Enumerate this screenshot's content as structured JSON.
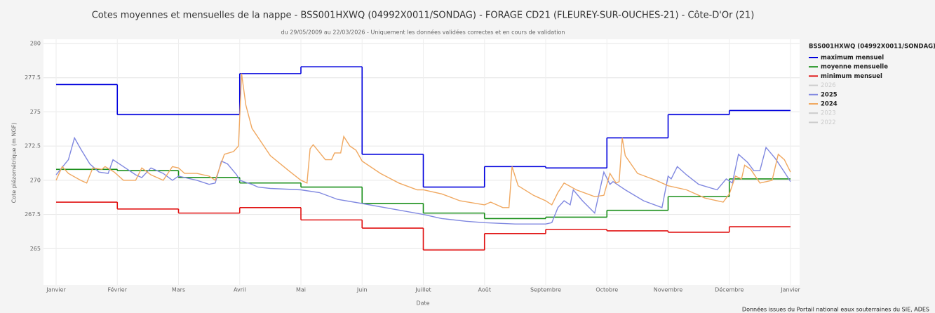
{
  "chart_data": {
    "type": "line",
    "title": "Cotes moyennes et mensuelles de la nappe - BSS001HXWQ (04992X0011/SONDAG) - FORAGE CD21 (FLEUREY-SUR-OUCHES-21) - Côte-D'Or (21)",
    "subtitle": "du 29/05/2009 au 22/03/2026 - Uniquement les données validées correctes et en cours de validation",
    "xlabel": "Date",
    "ylabel": "Cote piézométrique (m NGF)",
    "source": "Données issues du Portail national eaux souterraines du SIE, ADES",
    "legend_title": "BSS001HXWQ (04992X0011/SONDAG)",
    "legend": "right",
    "grid": true,
    "xlim": [
      0,
      12
    ],
    "xticks": [
      {
        "value": 0,
        "label": "Janvier"
      },
      {
        "value": 1,
        "label": "Février"
      },
      {
        "value": 2,
        "label": "Mars"
      },
      {
        "value": 3,
        "label": "Avril"
      },
      {
        "value": 4,
        "label": "Mai"
      },
      {
        "value": 5,
        "label": "Juin"
      },
      {
        "value": 6,
        "label": "Juillet"
      },
      {
        "value": 7,
        "label": "Août"
      },
      {
        "value": 8,
        "label": "Septembre"
      },
      {
        "value": 9,
        "label": "Octobre"
      },
      {
        "value": 10,
        "label": "Novembre"
      },
      {
        "value": 11,
        "label": "Décembre"
      },
      {
        "value": 12,
        "label": "Janvier"
      }
    ],
    "ylim": [
      262.5,
      280
    ],
    "yticks": [
      265,
      267.5,
      270,
      272.5,
      275,
      277.5,
      280
    ],
    "series": [
      {
        "name": "maximum mensuel",
        "color": "#0000dd",
        "drawstyle": "steps-post",
        "visible": true,
        "x": [
          0,
          1,
          2,
          3,
          4,
          5,
          6,
          7,
          8,
          9,
          10,
          11
        ],
        "values": [
          277.0,
          274.8,
          274.8,
          277.8,
          278.3,
          271.9,
          269.5,
          271.0,
          270.9,
          273.1,
          274.8,
          275.1
        ]
      },
      {
        "name": "moyenne mensuelle",
        "color": "#1a8f1a",
        "drawstyle": "steps-post",
        "visible": true,
        "x": [
          0,
          1,
          2,
          3,
          4,
          5,
          6,
          7,
          8,
          9,
          10,
          11
        ],
        "values": [
          270.8,
          270.7,
          270.2,
          269.8,
          269.5,
          268.3,
          267.6,
          267.2,
          267.3,
          267.8,
          268.8,
          270.1
        ]
      },
      {
        "name": "minimum mensuel",
        "color": "#e01010",
        "drawstyle": "steps-post",
        "visible": true,
        "x": [
          0,
          1,
          2,
          3,
          4,
          5,
          6,
          7,
          8,
          9,
          10,
          11
        ],
        "values": [
          268.4,
          267.9,
          267.6,
          268.0,
          267.1,
          266.5,
          264.9,
          266.1,
          266.4,
          266.3,
          266.2,
          266.6
        ]
      },
      {
        "name": "2026",
        "color": "#cccccc",
        "visible": false,
        "x": [],
        "values": []
      },
      {
        "name": "2025",
        "color": "#8088e0",
        "visible": true,
        "x": [
          0,
          0.2,
          0.3,
          0.4,
          0.55,
          0.7,
          0.85,
          0.93,
          1.1,
          1.3,
          1.4,
          1.55,
          1.75,
          1.9,
          2.0,
          2.3,
          2.5,
          2.6,
          2.7,
          2.8,
          2.95,
          3.0,
          3.2,
          3.3,
          3.5,
          4.0,
          4.3,
          4.6,
          5.0,
          5.5,
          6.0,
          6.3,
          6.7,
          7.0,
          7.5,
          8.0,
          8.1,
          8.2,
          8.3,
          8.4,
          8.45,
          8.6,
          8.8,
          8.95,
          9.05,
          9.1,
          9.3,
          9.6,
          9.9,
          10.0,
          10.05,
          10.15,
          10.3,
          10.5,
          10.8,
          10.95,
          11.05,
          11.15,
          11.3,
          11.4,
          11.5,
          11.6,
          11.75,
          11.9,
          12.0
        ],
        "values": [
          270.4,
          271.5,
          273.1,
          272.3,
          271.2,
          270.6,
          270.5,
          271.5,
          271.0,
          270.4,
          270.2,
          270.9,
          270.5,
          270.0,
          270.3,
          270.0,
          269.7,
          269.8,
          271.4,
          271.2,
          270.4,
          270.0,
          269.7,
          269.5,
          269.4,
          269.3,
          269.1,
          268.6,
          268.3,
          267.9,
          267.5,
          267.2,
          267.0,
          266.9,
          266.8,
          266.8,
          266.9,
          268.0,
          268.5,
          268.2,
          269.3,
          268.5,
          267.6,
          270.6,
          269.7,
          269.9,
          269.3,
          268.5,
          268.0,
          270.3,
          270.1,
          271.0,
          270.4,
          269.7,
          269.3,
          270.1,
          269.8,
          271.9,
          271.3,
          270.7,
          270.7,
          272.4,
          271.6,
          270.6,
          269.9
        ]
      },
      {
        "name": "2024",
        "color": "#f0a860",
        "visible": true,
        "x": [
          0,
          0.1,
          0.2,
          0.4,
          0.5,
          0.6,
          0.75,
          0.8,
          0.95,
          1.1,
          1.3,
          1.4,
          1.55,
          1.75,
          1.9,
          2.0,
          2.1,
          2.3,
          2.5,
          2.6,
          2.75,
          2.9,
          2.98,
          3.03,
          3.1,
          3.2,
          3.5,
          3.8,
          4.0,
          4.1,
          4.15,
          4.2,
          4.4,
          4.5,
          4.55,
          4.65,
          4.7,
          4.8,
          4.9,
          5.0,
          5.3,
          5.6,
          5.9,
          6.0,
          6.3,
          6.6,
          7.0,
          7.1,
          7.3,
          7.4,
          7.45,
          7.55,
          7.8,
          8.0,
          8.1,
          8.2,
          8.3,
          8.5,
          8.8,
          8.95,
          9.05,
          9.15,
          9.2,
          9.25,
          9.3,
          9.5,
          9.8,
          10.0,
          10.3,
          10.6,
          10.8,
          10.9,
          11.0,
          11.1,
          11.2,
          11.25,
          11.35,
          11.5,
          11.7,
          11.8,
          11.9,
          12.0
        ],
        "values": [
          270.0,
          271.0,
          270.5,
          270.0,
          269.8,
          270.9,
          270.8,
          271.0,
          270.6,
          270.0,
          270.0,
          270.9,
          270.4,
          270.0,
          271.0,
          270.9,
          270.5,
          270.5,
          270.3,
          270.0,
          271.9,
          272.1,
          272.5,
          277.8,
          275.5,
          273.8,
          271.8,
          270.7,
          270.0,
          269.8,
          272.3,
          272.6,
          271.5,
          271.5,
          272.0,
          272.0,
          273.2,
          272.5,
          272.2,
          271.4,
          270.5,
          269.8,
          269.3,
          269.3,
          269.0,
          268.5,
          268.2,
          268.4,
          268.0,
          268.0,
          271.0,
          269.6,
          268.9,
          268.5,
          268.2,
          269.1,
          269.8,
          269.3,
          268.8,
          268.9,
          270.5,
          269.8,
          269.9,
          273.1,
          271.8,
          270.5,
          270.0,
          269.6,
          269.3,
          268.7,
          268.5,
          268.4,
          269.0,
          270.3,
          270.1,
          271.1,
          270.8,
          269.8,
          270.0,
          271.9,
          271.5,
          270.6
        ]
      },
      {
        "name": "2023",
        "color": "#cccccc",
        "visible": false,
        "x": [],
        "values": []
      },
      {
        "name": "2022",
        "color": "#cccccc",
        "visible": false,
        "x": [],
        "values": []
      }
    ]
  }
}
